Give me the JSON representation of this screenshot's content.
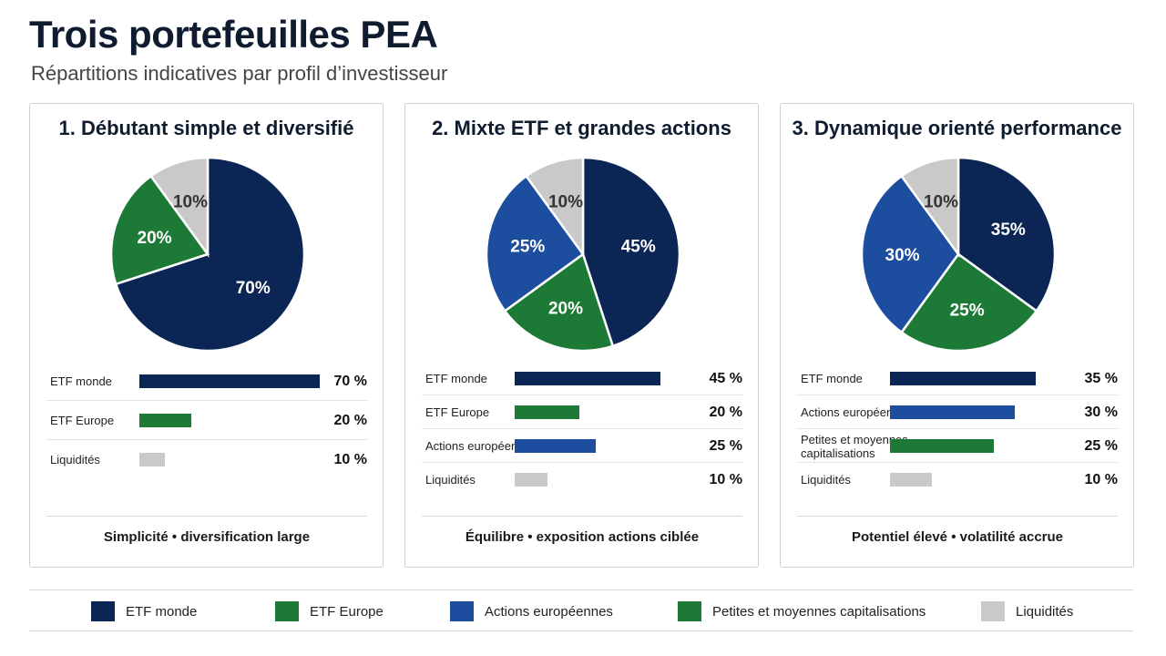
{
  "page": {
    "title": "Trois portefeuilles PEA",
    "subtitle": "Répartitions indicatives par profil d’investisseur"
  },
  "colors": {
    "ETF monde": "#0b2654",
    "ETF Europe": "#1d7a36",
    "Actions européennes": "#1c4d9f",
    "Petites et moyennes capitalisations": "#1d7a36",
    "Liquidités": "#c9c9c9"
  },
  "chart_data": [
    {
      "type": "pie",
      "title": "1. Débutant simple et diversifié",
      "slices": [
        {
          "label": "ETF monde",
          "value": 70,
          "display": "70%"
        },
        {
          "label": "ETF Europe",
          "value": 20,
          "display": "20%"
        },
        {
          "label": "Liquidités",
          "value": 10,
          "display": "10%"
        }
      ],
      "rows": [
        {
          "label": "ETF monde",
          "value": 70,
          "display": "70 %"
        },
        {
          "label": "ETF Europe",
          "value": 20,
          "display": "20 %"
        },
        {
          "label": "Liquidités",
          "value": 10,
          "display": "10 %"
        }
      ],
      "footer": "Simplicité • diversification large"
    },
    {
      "type": "pie",
      "title": "2. Mixte ETF et grandes actions",
      "slices": [
        {
          "label": "ETF monde",
          "value": 45,
          "display": "45%"
        },
        {
          "label": "ETF Europe",
          "value": 20,
          "display": "20%"
        },
        {
          "label": "Actions européennes",
          "value": 25,
          "display": "25%"
        },
        {
          "label": "Liquidités",
          "value": 10,
          "display": "10%"
        }
      ],
      "rows": [
        {
          "label": "ETF monde",
          "value": 45,
          "display": "45 %"
        },
        {
          "label": "ETF Europe",
          "value": 20,
          "display": "20 %"
        },
        {
          "label": "Actions européennes",
          "value": 25,
          "display": "25 %"
        },
        {
          "label": "Liquidités",
          "value": 10,
          "display": "10 %"
        }
      ],
      "footer": "Équilibre • exposition actions ciblée"
    },
    {
      "type": "pie",
      "title": "3. Dynamique orienté performance",
      "slices": [
        {
          "label": "ETF monde",
          "value": 35,
          "display": "35%"
        },
        {
          "label": "Petites et moyennes capitalisations",
          "value": 25,
          "display": "25%"
        },
        {
          "label": "Actions européennes",
          "value": 30,
          "display": "30%"
        },
        {
          "label": "Liquidités",
          "value": 10,
          "display": "10%"
        }
      ],
      "rows": [
        {
          "label": "ETF monde",
          "value": 35,
          "display": "35 %"
        },
        {
          "label": "Actions européennes",
          "value": 30,
          "display": "30 %"
        },
        {
          "label": "Petites et moyennes\ncapitalisations",
          "value": 25,
          "display": "25 %",
          "color_key": "Petites et moyennes capitalisations"
        },
        {
          "label": "Liquidités",
          "value": 10,
          "display": "10 %"
        }
      ],
      "footer": "Potentiel élevé • volatilité accrue"
    }
  ],
  "legend": [
    {
      "label": "ETF monde",
      "color": "#0b2654"
    },
    {
      "label": "ETF Europe",
      "color": "#1d7a36"
    },
    {
      "label": "Actions européennes",
      "color": "#1c4d9f"
    },
    {
      "label": "Petites et moyennes capitalisations",
      "color": "#1d7a36"
    },
    {
      "label": "Liquidités",
      "color": "#c9c9c9"
    }
  ]
}
